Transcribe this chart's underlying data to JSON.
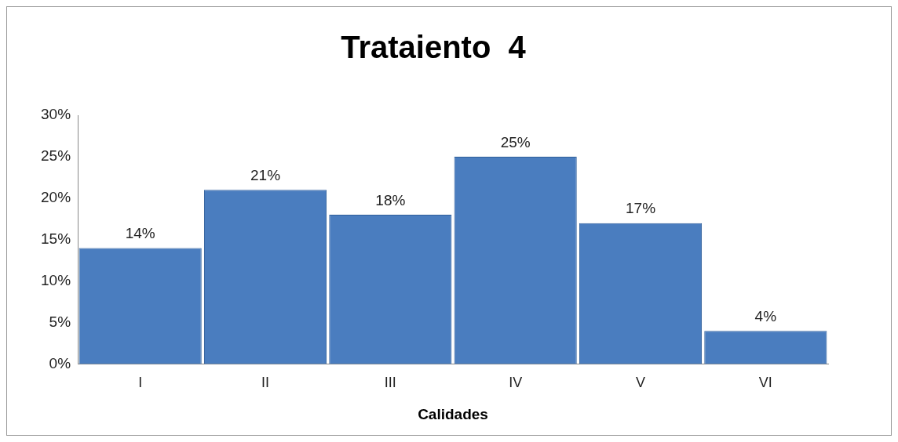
{
  "chart_data": {
    "type": "bar",
    "title": "Trataiento  4",
    "xlabel": "Calidades",
    "categories": [
      "I",
      "II",
      "III",
      "IV",
      "V",
      "VI"
    ],
    "values": [
      14,
      21,
      18,
      25,
      17,
      4
    ],
    "value_labels": [
      "14%",
      "21%",
      "18%",
      "25%",
      "17%",
      "4%"
    ],
    "color": "#4a7dbf",
    "ylim": [
      0,
      30
    ],
    "yticks": [
      {
        "value": 0,
        "label": "0%"
      },
      {
        "value": 5,
        "label": "5%"
      },
      {
        "value": 10,
        "label": "10%"
      },
      {
        "value": 15,
        "label": "15%"
      },
      {
        "value": 20,
        "label": "20%"
      },
      {
        "value": 25,
        "label": "25%"
      },
      {
        "value": 30,
        "label": "30%"
      }
    ],
    "grid": false,
    "legend": false
  }
}
